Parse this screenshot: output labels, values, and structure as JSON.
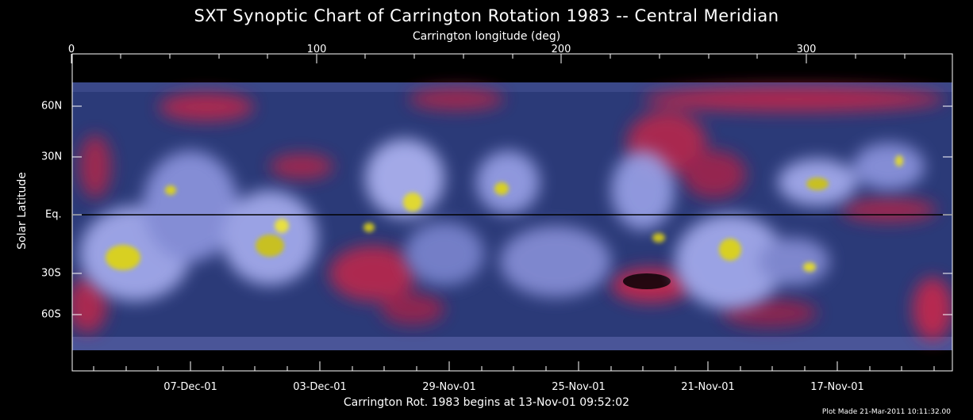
{
  "title": "SXT Synoptic Chart of Carrington Rotation 1983 -- Central Meridian",
  "top_axis_label": "Carrington longitude (deg)",
  "left_axis_label": "Solar Latitude",
  "bottom_axis_label": "Carrington Rot. 1983 begins at 13-Nov-01 09:52:02",
  "plot_made": "Plot Made 21-Mar-2011 10:11:32.00",
  "top_ticks": [
    "0",
    "100",
    "200",
    "300"
  ],
  "left_ticks": [
    "60N",
    "30N",
    "Eq.",
    "30S",
    "60S"
  ],
  "bottom_ticks": [
    "07-Dec-01",
    "03-Dec-01",
    "29-Nov-01",
    "25-Nov-01",
    "21-Nov-01",
    "17-Nov-01"
  ],
  "colors": {
    "background": "#000000",
    "map_base": "#2b3a78",
    "bright_loops": "#a7aef0",
    "active_core": "#d8d020",
    "coronal_hole": "#c02848",
    "axis": "#ffffff"
  }
}
